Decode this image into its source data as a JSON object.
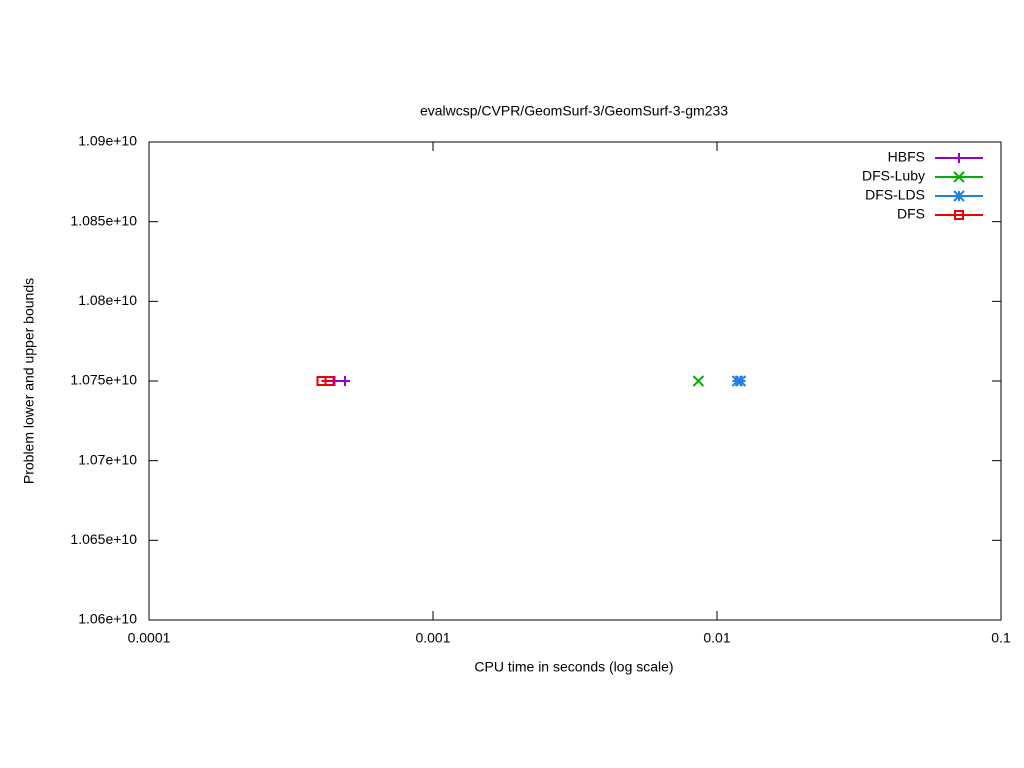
{
  "chart_data": {
    "type": "scatter",
    "title": "evalwcsp/CVPR/GeomSurf-3/GeomSurf-3-gm233",
    "x_label": "CPU time in seconds (log scale)",
    "y_label": "Problem lower and upper bounds",
    "xlog": true,
    "xlim": [
      0.0001,
      0.1
    ],
    "xticks": [
      0.0001,
      0.001,
      0.01,
      0.1
    ],
    "ylim": [
      10600000000,
      10900000000
    ],
    "yticks": [
      {
        "value": 10600000000,
        "label": "1.06e+10"
      },
      {
        "value": 10650000000,
        "label": "1.065e+10"
      },
      {
        "value": 10700000000,
        "label": "1.07e+10"
      },
      {
        "value": 10750000000,
        "label": "1.075e+10"
      },
      {
        "value": 10800000000,
        "label": "1.08e+10"
      },
      {
        "value": 10850000000,
        "label": "1.085e+10"
      },
      {
        "value": 10900000000,
        "label": "1.09e+10"
      }
    ],
    "legend": "top-right",
    "series": [
      {
        "name": "HBFS",
        "color": "#9400d3",
        "marker": "plus",
        "x": [
          0.00045,
          0.00049
        ],
        "values": [
          10750000000,
          10750000000
        ]
      },
      {
        "name": "DFS-Luby",
        "color": "#00b000",
        "marker": "cross",
        "x": [
          0.0086
        ],
        "values": [
          10750000000
        ]
      },
      {
        "name": "DFS-LDS",
        "color": "#1e7fe6",
        "marker": "star",
        "x": [
          0.0118,
          0.0121
        ],
        "values": [
          10750000000,
          10750000000
        ]
      },
      {
        "name": "DFS",
        "color": "#ee0000",
        "marker": "square",
        "x": [
          0.000405,
          0.000432
        ],
        "values": [
          10750000000,
          10750000000
        ]
      }
    ]
  }
}
